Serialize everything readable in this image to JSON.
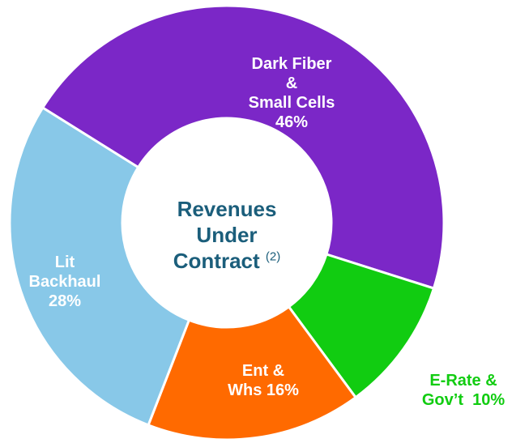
{
  "chart_data": {
    "type": "donut",
    "center_label": "Revenues\nUnder\nContract",
    "center_note": "(2)",
    "categories": [
      "Dark Fiber\n&\nSmall Cells",
      "E-Rate &\nGov’t",
      "Ent &\nWhs",
      "Lit\nBackhaul"
    ],
    "values": [
      46,
      10,
      16,
      28
    ],
    "value_labels": [
      "46%",
      "10%",
      "16%",
      "28%"
    ],
    "colors": [
      "#7b27c7",
      "#11cc11",
      "#ff6a00",
      "#88c8e8"
    ]
  }
}
